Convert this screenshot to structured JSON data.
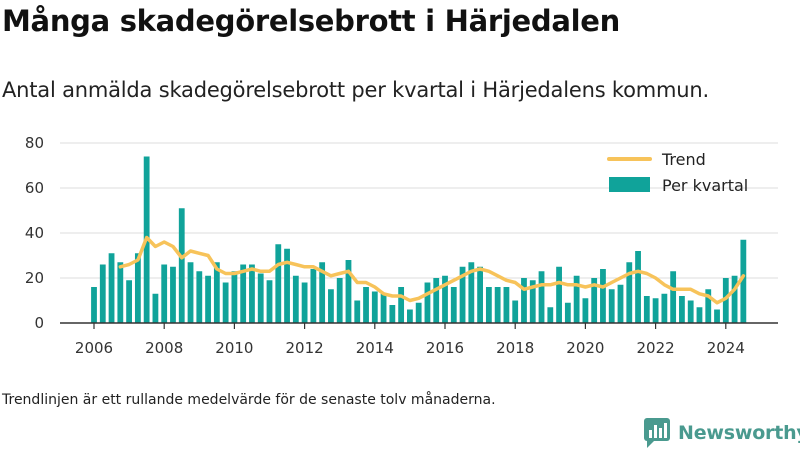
{
  "title": "Många skadegörelsebrott i Härjedalen",
  "subtitle": "Antal anmälda skadegörelsebrott per kvartal i Härjedalens kommun.",
  "footnote": "Trendlinjen är ett rullande medelvärde för de senaste tolv månaderna.",
  "brand": {
    "name": "Newsworthy",
    "color": "#4a9a8f"
  },
  "colors": {
    "bars": "#10a39a",
    "trend": "#f7c35a",
    "grid": "#dddddd",
    "axis": "#333333"
  },
  "chart_data": {
    "type": "bar",
    "legend": {
      "placement": "top-right",
      "items": [
        "Trend",
        "Per kvartal"
      ]
    },
    "grid": true,
    "ylim": [
      0,
      80
    ],
    "yticks": [
      0,
      20,
      40,
      60,
      80
    ],
    "xlim": [
      2005.5,
      2025.5
    ],
    "xticks": [
      2006,
      2008,
      2010,
      2012,
      2014,
      2016,
      2018,
      2020,
      2022,
      2024
    ],
    "series": [
      {
        "name": "Per kvartal",
        "kind": "bar",
        "x": [
          2006.0,
          2006.25,
          2006.5,
          2006.75,
          2007.0,
          2007.25,
          2007.5,
          2007.75,
          2008.0,
          2008.25,
          2008.5,
          2008.75,
          2009.0,
          2009.25,
          2009.5,
          2009.75,
          2010.0,
          2010.25,
          2010.5,
          2010.75,
          2011.0,
          2011.25,
          2011.5,
          2011.75,
          2012.0,
          2012.25,
          2012.5,
          2012.75,
          2013.0,
          2013.25,
          2013.5,
          2013.75,
          2014.0,
          2014.25,
          2014.5,
          2014.75,
          2015.0,
          2015.25,
          2015.5,
          2015.75,
          2016.0,
          2016.25,
          2016.5,
          2016.75,
          2017.0,
          2017.25,
          2017.5,
          2017.75,
          2018.0,
          2018.25,
          2018.5,
          2018.75,
          2019.0,
          2019.25,
          2019.5,
          2019.75,
          2020.0,
          2020.25,
          2020.5,
          2020.75,
          2021.0,
          2021.25,
          2021.5,
          2021.75,
          2022.0,
          2022.25,
          2022.5,
          2022.75,
          2023.0,
          2023.25,
          2023.5,
          2023.75,
          2024.0,
          2024.25,
          2024.5
        ],
        "values": [
          16,
          26,
          31,
          27,
          19,
          31,
          74,
          13,
          26,
          25,
          51,
          27,
          23,
          21,
          27,
          18,
          23,
          26,
          26,
          22,
          19,
          35,
          33,
          21,
          18,
          24,
          27,
          15,
          20,
          28,
          10,
          16,
          14,
          13,
          8,
          16,
          6,
          9,
          18,
          20,
          21,
          16,
          25,
          27,
          25,
          16,
          16,
          16,
          10,
          20,
          19,
          23,
          7,
          25,
          9,
          21,
          11,
          20,
          24,
          15,
          17,
          27,
          32,
          12,
          11,
          13,
          23,
          12,
          10,
          7,
          15,
          6,
          20,
          21,
          37
        ]
      },
      {
        "name": "Trend",
        "kind": "line",
        "x": [
          2006.75,
          2007.0,
          2007.25,
          2007.5,
          2007.75,
          2008.0,
          2008.25,
          2008.5,
          2008.75,
          2009.0,
          2009.25,
          2009.5,
          2009.75,
          2010.0,
          2010.25,
          2010.5,
          2010.75,
          2011.0,
          2011.25,
          2011.5,
          2011.75,
          2012.0,
          2012.25,
          2012.5,
          2012.75,
          2013.0,
          2013.25,
          2013.5,
          2013.75,
          2014.0,
          2014.25,
          2014.5,
          2014.75,
          2015.0,
          2015.25,
          2015.5,
          2015.75,
          2016.0,
          2016.25,
          2016.5,
          2016.75,
          2017.0,
          2017.25,
          2017.5,
          2017.75,
          2018.0,
          2018.25,
          2018.5,
          2018.75,
          2019.0,
          2019.25,
          2019.5,
          2019.75,
          2020.0,
          2020.25,
          2020.5,
          2020.75,
          2021.0,
          2021.25,
          2021.5,
          2021.75,
          2022.0,
          2022.25,
          2022.5,
          2022.75,
          2023.0,
          2023.25,
          2023.5,
          2023.75,
          2024.0,
          2024.25,
          2024.5
        ],
        "values": [
          25,
          26,
          28,
          38,
          34,
          36,
          34,
          29,
          32,
          31,
          30,
          24,
          22,
          22,
          23,
          24,
          23,
          23,
          26,
          27,
          26,
          25,
          25,
          23,
          21,
          22,
          23,
          18,
          18,
          16,
          13,
          12,
          12,
          10,
          11,
          13,
          15,
          17,
          19,
          21,
          23,
          24,
          23,
          21,
          19,
          18,
          15,
          16,
          17,
          17,
          18,
          17,
          17,
          16,
          17,
          16,
          18,
          20,
          22,
          23,
          22,
          20,
          17,
          15,
          15,
          15,
          13,
          12,
          9,
          11,
          15,
          21
        ]
      }
    ]
  }
}
